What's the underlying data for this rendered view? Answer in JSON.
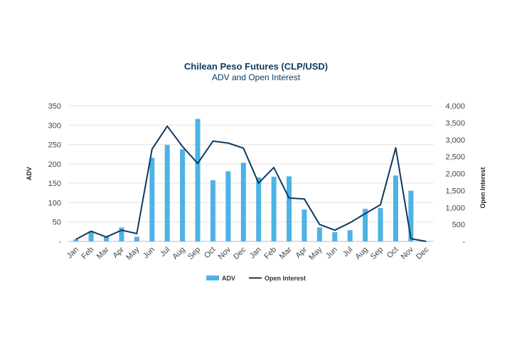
{
  "chart_data": {
    "type": "bar",
    "title": "Chilean Peso Futures (CLP/USD)",
    "subtitle": "ADV and Open Interest",
    "ylabel": "ADV",
    "y2label": "Open Interest",
    "ylim": [
      0,
      350
    ],
    "y2lim": [
      0,
      4000
    ],
    "yticks": [
      "-",
      "50",
      "100",
      "150",
      "200",
      "250",
      "300",
      "350"
    ],
    "y2ticks": [
      "-",
      "500",
      "1,000",
      "1,500",
      "2,000",
      "2,500",
      "3,000",
      "3,500",
      "4,000"
    ],
    "categories": [
      "Jan",
      "Feb",
      "Mar",
      "Apr",
      "May",
      "Jun",
      "Jul",
      "Aug",
      "Sep",
      "Oct",
      "Nov",
      "Dec",
      "Jan",
      "Feb",
      "Mar",
      "Apr",
      "May",
      "Jun",
      "Jul",
      "Aug",
      "Sep",
      "Oct",
      "Nov",
      "Dec"
    ],
    "series": [
      {
        "name": "ADV",
        "type": "bar",
        "axis": "left",
        "color": "#4db3e6",
        "values": [
          5,
          27,
          14,
          36,
          12,
          216,
          249,
          238,
          316,
          158,
          181,
          203,
          165,
          167,
          168,
          82,
          36,
          24,
          29,
          84,
          86,
          170,
          131,
          0
        ]
      },
      {
        "name": "Open Interest",
        "type": "line",
        "axis": "right",
        "color": "#0e3a5f",
        "values": [
          60,
          300,
          130,
          330,
          230,
          2720,
          3400,
          2800,
          2300,
          2960,
          2900,
          2750,
          1720,
          2180,
          1280,
          1250,
          500,
          330,
          550,
          820,
          1080,
          2760,
          80,
          0
        ]
      }
    ],
    "legend": "bottom-center",
    "grid": true
  }
}
